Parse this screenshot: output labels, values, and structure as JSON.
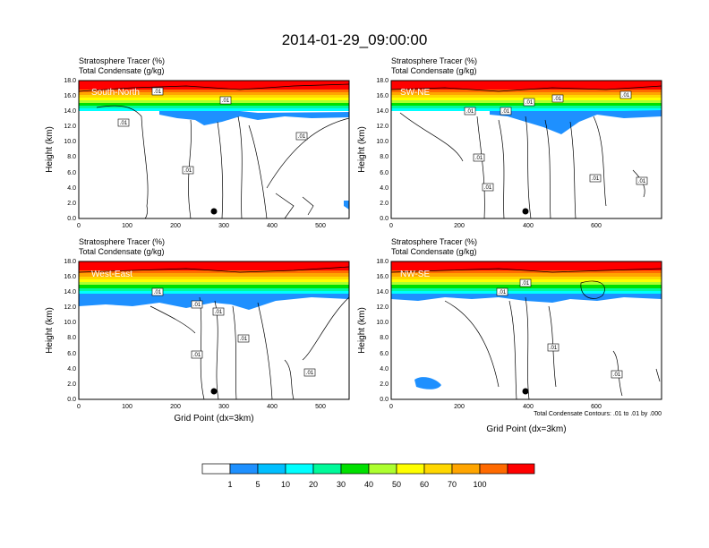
{
  "title": "2014-01-29_09:00:00",
  "colors": {
    "levels": [
      "#ffffff",
      "#1e90ff",
      "#00bfff",
      "#00ffff",
      "#00fa9a",
      "#00e000",
      "#adff2f",
      "#ffff00",
      "#ffd700",
      "#ffa500",
      "#ff6a00",
      "#ff0000"
    ]
  },
  "panels": [
    {
      "name": "South-North",
      "line1": "Stratosphere Tracer   (%)",
      "line2": "Total Condensate   (g/kg)",
      "ylabel": "Height (km)",
      "xlabel": "",
      "xmax": 560,
      "xticks": [
        0,
        100,
        200,
        300,
        400,
        500
      ],
      "yticks": [
        "0.0",
        "2.0",
        "4.0",
        "6.0",
        "8.0",
        "10.0",
        "12.0",
        "14.0",
        "16.0",
        "18.0"
      ],
      "marker_x": 278,
      "contour_labels": [
        ".01",
        ".01",
        ".01",
        ".01",
        ".01"
      ]
    },
    {
      "name": "SW-NE",
      "line1": "Stratosphere Tracer   (%)",
      "line2": "Total Condensate   (g/kg)",
      "ylabel": "Height (km)",
      "xlabel": "",
      "xmax": 790,
      "xticks": [
        0,
        200,
        400,
        600
      ],
      "yticks": [
        "0.0",
        "2.0",
        "4.0",
        "6.0",
        "8.0",
        "10.0",
        "12.0",
        "14.0",
        "16.0",
        "18.0"
      ],
      "marker_x": 393,
      "contour_labels": [
        ".01",
        ".01",
        ".01",
        ".01",
        ".01",
        ".01",
        ".01",
        ".01",
        ".01"
      ]
    },
    {
      "name": "West-East",
      "line1": "Stratosphere Tracer   (%)",
      "line2": "Total Condensate   (g/kg)",
      "ylabel": "Height (km)",
      "xlabel": "Grid Point (dx=3km)",
      "xmax": 560,
      "xticks": [
        0,
        100,
        200,
        300,
        400,
        500
      ],
      "yticks": [
        "0.0",
        "2.0",
        "4.0",
        "6.0",
        "8.0",
        "10.0",
        "12.0",
        "14.0",
        "16.0",
        "18.0"
      ],
      "marker_x": 278,
      "contour_labels": [
        ".01",
        ".01",
        ".01",
        ".01",
        ".01",
        ".01"
      ]
    },
    {
      "name": "NW-SE",
      "line1": "Stratosphere Tracer   (%)",
      "line2": "Total Condensate   (g/kg)",
      "ylabel": "Height (km)",
      "xlabel": "Grid Point (dx=3km)",
      "xmax": 790,
      "xticks": [
        0,
        200,
        400,
        600
      ],
      "yticks": [
        "0.0",
        "2.0",
        "4.0",
        "6.0",
        "8.0",
        "10.0",
        "12.0",
        "14.0",
        "16.0",
        "18.0"
      ],
      "marker_x": 393,
      "contour_labels": [
        ".01",
        ".01",
        ".01",
        ".01"
      ],
      "footnote": "Total Condensate Contours: .01 to .01 by .000"
    }
  ],
  "colorbar": {
    "labels": [
      "1",
      "5",
      "10",
      "20",
      "30",
      "40",
      "50",
      "60",
      "70",
      "100"
    ]
  },
  "chart_data": [
    {
      "type": "heatmap",
      "panel": "South-North",
      "xlim": [
        0,
        560
      ],
      "ylim": [
        0,
        18
      ],
      "units": {
        "x": "grid point",
        "y": "km"
      },
      "tracer_profile_km": {
        "above_16.5": "70-100",
        "16.0_16.5": "40-70",
        "15.0_16.0": "10-40",
        "14.0_15.0": "1-10"
      },
      "contour_level": 0.01,
      "marker": {
        "x": 278,
        "y": 1.0
      }
    },
    {
      "type": "heatmap",
      "panel": "SW-NE",
      "xlim": [
        0,
        790
      ],
      "ylim": [
        0,
        18
      ],
      "tracer_profile_km": {
        "above_16.5": "70-100",
        "16.0_16.5": "40-70",
        "15.0_16.0": "10-40",
        "13.5_15.0": "1-10"
      },
      "contour_level": 0.01,
      "marker": {
        "x": 393,
        "y": 1.0
      }
    },
    {
      "type": "heatmap",
      "panel": "West-East",
      "xlim": [
        0,
        560
      ],
      "ylim": [
        0,
        18
      ],
      "tracer_profile_km": {
        "above_16.5": "70-100",
        "15.5_16.5": "40-70",
        "14.5_15.5": "10-40",
        "12.0_14.5": "1-10"
      },
      "contour_level": 0.01,
      "marker": {
        "x": 278,
        "y": 1.0
      }
    },
    {
      "type": "heatmap",
      "panel": "NW-SE",
      "xlim": [
        0,
        790
      ],
      "ylim": [
        0,
        18
      ],
      "tracer_profile_km": {
        "above_16.5": "70-100",
        "15.5_16.5": "40-70",
        "14.5_15.5": "10-40",
        "13.5_14.5": "1-10"
      },
      "contour_level": 0.01,
      "marker": {
        "x": 393,
        "y": 1.0
      }
    }
  ]
}
